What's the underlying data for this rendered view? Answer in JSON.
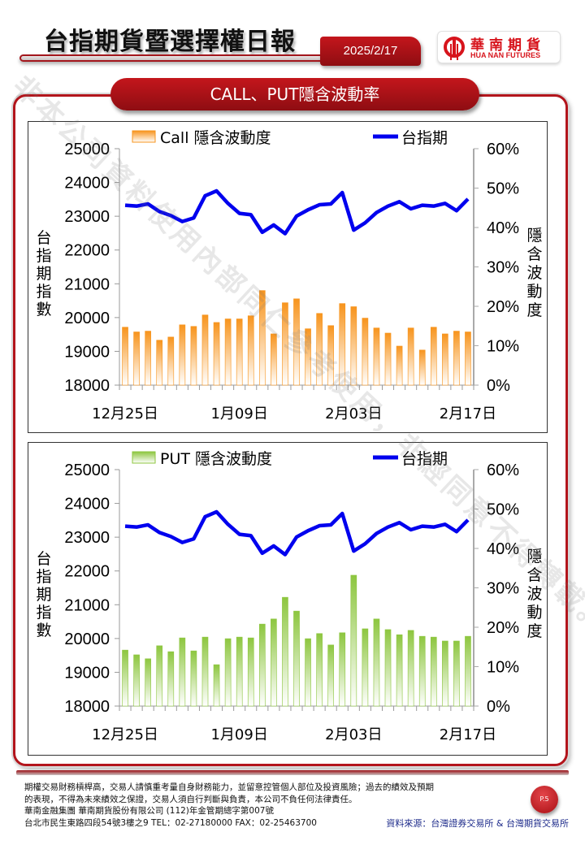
{
  "header": {
    "title": "台指期貨暨選擇權日報",
    "date": "2025/2/17",
    "logo_cn": "華南期貨",
    "logo_en": "HUA NAN FUTURES"
  },
  "section": {
    "title": "CALL、PUT隱含波動率"
  },
  "watermark": "非本公司資料使用內部同仁參考使用，非經同意不得轉載。",
  "colors": {
    "brand_red": "#b3151c",
    "call_bar": "#f7941d",
    "put_bar": "#8dc63f",
    "index_line": "#0000ee",
    "source_text": "#1c2a8a"
  },
  "chart_data": [
    {
      "type": "bar+line",
      "title": "",
      "legend": [
        "Call 隱含波動度",
        "台指期"
      ],
      "ylabel": "台指期指數",
      "y2label": "隱含波動度",
      "ylim": [
        18000,
        25000
      ],
      "yticks": [
        "25000",
        "24000",
        "23000",
        "22000",
        "21000",
        "20000",
        "19000",
        "18000"
      ],
      "y2lim": [
        0,
        60
      ],
      "y2ticks": [
        "60%",
        "50%",
        "40%",
        "30%",
        "20%",
        "10%",
        "0%"
      ],
      "xtick_labels": [
        {
          "index": 0,
          "label": "12月25日"
        },
        {
          "index": 10,
          "label": "1月09日"
        },
        {
          "index": 20,
          "label": "2月03日"
        },
        {
          "index": 30,
          "label": "2月17日"
        }
      ],
      "series": [
        {
          "name": "Call 隱含波動度",
          "type": "bar",
          "axis": "right",
          "unit": "%",
          "values": [
            14.7,
            13.5,
            13.7,
            11.4,
            12.2,
            15.3,
            14.9,
            17.8,
            15.9,
            16.8,
            16.8,
            17.6,
            24.0,
            13.0,
            20.9,
            21.9,
            14.3,
            18.2,
            15.1,
            20.7,
            19.9,
            17.0,
            14.5,
            13.2,
            9.9,
            14.5,
            8.9,
            14.7,
            13.0,
            13.7,
            13.5
          ]
        },
        {
          "name": "台指期",
          "type": "line",
          "axis": "left",
          "values": [
            23325,
            23300,
            23365,
            23140,
            23020,
            22845,
            22950,
            23605,
            23750,
            23380,
            23085,
            23045,
            22525,
            22740,
            22485,
            23005,
            23190,
            23340,
            23365,
            23700,
            22590,
            22805,
            23110,
            23300,
            23430,
            23220,
            23325,
            23300,
            23380,
            23165,
            23510
          ]
        }
      ]
    },
    {
      "type": "bar+line",
      "title": "",
      "legend": [
        "PUT 隱含波動度",
        "台指期"
      ],
      "ylabel": "台指期指數",
      "y2label": "隱含波動度",
      "ylim": [
        18000,
        25000
      ],
      "yticks": [
        "25000",
        "24000",
        "23000",
        "22000",
        "21000",
        "20000",
        "19000",
        "18000"
      ],
      "y2lim": [
        0,
        60
      ],
      "y2ticks": [
        "60%",
        "50%",
        "40%",
        "30%",
        "20%",
        "10%",
        "0%"
      ],
      "xtick_labels": [
        {
          "index": 0,
          "label": "12月25日"
        },
        {
          "index": 10,
          "label": "1月09日"
        },
        {
          "index": 20,
          "label": "2月03日"
        },
        {
          "index": 30,
          "label": "2月17日"
        }
      ],
      "series": [
        {
          "name": "PUT 隱含波動度",
          "type": "bar",
          "axis": "right",
          "unit": "%",
          "values": [
            14.2,
            13.0,
            12.0,
            15.3,
            13.8,
            17.3,
            14.0,
            17.5,
            10.5,
            17.1,
            17.5,
            17.3,
            20.8,
            22.1,
            27.6,
            24.1,
            17.1,
            18.4,
            15.5,
            18.6,
            33.2,
            19.6,
            22.1,
            19.4,
            18.1,
            19.2,
            17.7,
            17.5,
            16.5,
            16.5,
            17.7
          ]
        },
        {
          "name": "台指期",
          "type": "line",
          "axis": "left",
          "values": [
            23325,
            23300,
            23365,
            23140,
            23020,
            22845,
            22950,
            23605,
            23750,
            23380,
            23085,
            23045,
            22525,
            22740,
            22485,
            23005,
            23190,
            23340,
            23365,
            23700,
            22590,
            22805,
            23110,
            23300,
            23430,
            23220,
            23325,
            23300,
            23380,
            23165,
            23510
          ]
        }
      ]
    }
  ],
  "footer": {
    "disclaimer_line1": "期權交易財務槓桿高，交易人請慎重考量自身財務能力，並留意控管個人部位及投資風險；過去的績效及預期",
    "disclaimer_line2": "的表現，不得為未來績效之保證，交易人須自行判斷與負責，本公司不負任何法律責任。",
    "company_line": "華南金融集團 華南期貨股份有限公司 (112)年金管期總字第007號",
    "address_line": "台北市民生東路四段54號3樓之9  TEL：02-27180000  FAX：02-25463700",
    "source": "資料來源：台灣證券交易所 & 台灣期貨交易所",
    "page": "P.5"
  }
}
